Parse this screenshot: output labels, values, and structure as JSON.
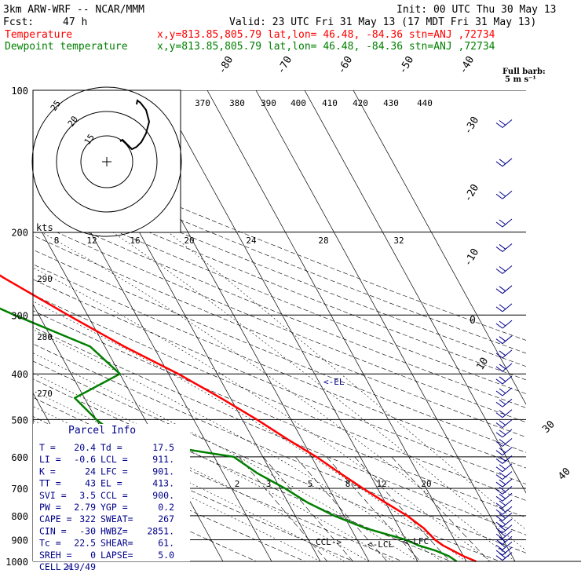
{
  "header": {
    "model": "3km ARW-WRF -- NCAR/MMM",
    "init": "Init: 00 UTC Thu 30 May 13",
    "fcst_label": "Fcst:",
    "fcst_value": "47 h",
    "valid": "Valid: 23 UTC Fri 31 May 13 (17 MDT Fri 31 May 13)",
    "legend": [
      {
        "name": "Temperature",
        "info": "x,y=813.85,805.79   lat,lon= 46.48, -84.36   stn=ANJ ,72734",
        "color": "#ff0000"
      },
      {
        "name": "Dewpoint temperature",
        "info": "x,y=813.85,805.79   lat,lon= 46.48, -84.36   stn=ANJ ,72734",
        "color": "#008000"
      }
    ]
  },
  "barb_legend": {
    "title": "Full barb:",
    "value": "5 m s⁻¹"
  },
  "hodograph": {
    "ring_labels": [
      "25",
      "20",
      "15"
    ],
    "kts_label": "kts",
    "color": "#000000"
  },
  "parcel_info": {
    "title": "Parcel Info",
    "rows": [
      [
        "T  =",
        "20.4",
        "Td =",
        "17.5"
      ],
      [
        "LI =",
        "-0.6",
        "LCL =",
        "911."
      ],
      [
        "K  =",
        "24",
        "LFC =",
        "901."
      ],
      [
        "TT =",
        "43",
        "EL  =",
        "413."
      ],
      [
        "SVI =",
        "3.5",
        "CCL =",
        "900."
      ],
      [
        "PW =",
        "2.79",
        "YGP =",
        "0.2"
      ],
      [
        "CAPE =",
        "322",
        "SWEAT=",
        "267"
      ],
      [
        "CIN =",
        "-30",
        "HWBZ=",
        "2851."
      ],
      [
        "Tc =",
        "22.5",
        "SHEAR=",
        "61."
      ],
      [
        "SREH =",
        "0",
        "LAPSE=",
        "5.0"
      ],
      [
        "CELL =",
        "219/49",
        "",
        ""
      ]
    ]
  },
  "markers": {
    "el": "<-EL",
    "lcl": "<-LCL",
    "lfc": "<-LFC",
    "ccl": "CCL->"
  },
  "chart_data": {
    "type": "line",
    "title": "",
    "xlabel": "",
    "ylabel": "",
    "y_axis_labels": [
      "100",
      "200",
      "300",
      "400",
      "500",
      "600",
      "700",
      "800",
      "900",
      "1000"
    ],
    "isotherm_labels": [
      "-80",
      "-70",
      "-60",
      "-50",
      "-40",
      "-30",
      "-20",
      "-10",
      "0",
      "10",
      "30",
      "40"
    ],
    "theta_labels_top": [
      "370",
      "380",
      "390",
      "400",
      "410",
      "420",
      "430",
      "440"
    ],
    "theta_labels_left": [
      "290",
      "280",
      "270"
    ],
    "mixing_ratio_labels_mid": [
      "8",
      "12",
      "16",
      "20",
      "24",
      "28",
      "32"
    ],
    "mixing_ratio_labels_low": [
      "2",
      "3",
      "5",
      "8",
      "12",
      "20"
    ],
    "series": [
      {
        "name": "Temperature",
        "color": "#ff0000",
        "points": [
          [
            1000,
            22
          ],
          [
            975,
            20
          ],
          [
            925,
            17
          ],
          [
            900,
            16
          ],
          [
            850,
            15
          ],
          [
            800,
            13
          ],
          [
            750,
            10
          ],
          [
            700,
            7
          ],
          [
            650,
            4
          ],
          [
            600,
            1
          ],
          [
            550,
            -3
          ],
          [
            500,
            -7
          ],
          [
            450,
            -12
          ],
          [
            400,
            -18
          ],
          [
            350,
            -26
          ],
          [
            300,
            -34
          ],
          [
            250,
            -43
          ],
          [
            200,
            -53
          ],
          [
            190,
            -55
          ],
          [
            170,
            -55
          ],
          [
            150,
            -54
          ],
          [
            140,
            -55
          ],
          [
            125,
            -57
          ],
          [
            110,
            -57
          ],
          [
            100,
            -57
          ]
        ]
      },
      {
        "name": "Dewpoint temperature",
        "color": "#008000",
        "points": [
          [
            1000,
            18
          ],
          [
            975,
            17
          ],
          [
            950,
            15
          ],
          [
            925,
            12
          ],
          [
            900,
            10
          ],
          [
            850,
            3
          ],
          [
            800,
            -2
          ],
          [
            750,
            -6
          ],
          [
            700,
            -9
          ],
          [
            650,
            -13
          ],
          [
            600,
            -16
          ],
          [
            550,
            -37
          ],
          [
            500,
            -40
          ],
          [
            450,
            -42
          ],
          [
            400,
            -30
          ],
          [
            350,
            -33
          ],
          [
            300,
            -45
          ],
          [
            260,
            -55
          ],
          [
            220,
            -60
          ],
          [
            200,
            -62
          ],
          [
            170,
            -76
          ],
          [
            150,
            -82
          ],
          [
            130,
            -77
          ],
          [
            110,
            -72
          ],
          [
            100,
            -70
          ]
        ]
      }
    ],
    "hodograph": [
      [
        -7,
        20
      ],
      [
        -10,
        18
      ],
      [
        -6,
        14
      ],
      [
        -4,
        14
      ],
      [
        -2,
        12
      ],
      [
        0,
        13
      ],
      [
        4,
        13
      ],
      [
        6,
        15
      ],
      [
        8,
        16
      ],
      [
        8,
        20
      ],
      [
        6,
        24
      ],
      [
        2,
        28
      ],
      [
        1,
        30
      ]
    ]
  }
}
